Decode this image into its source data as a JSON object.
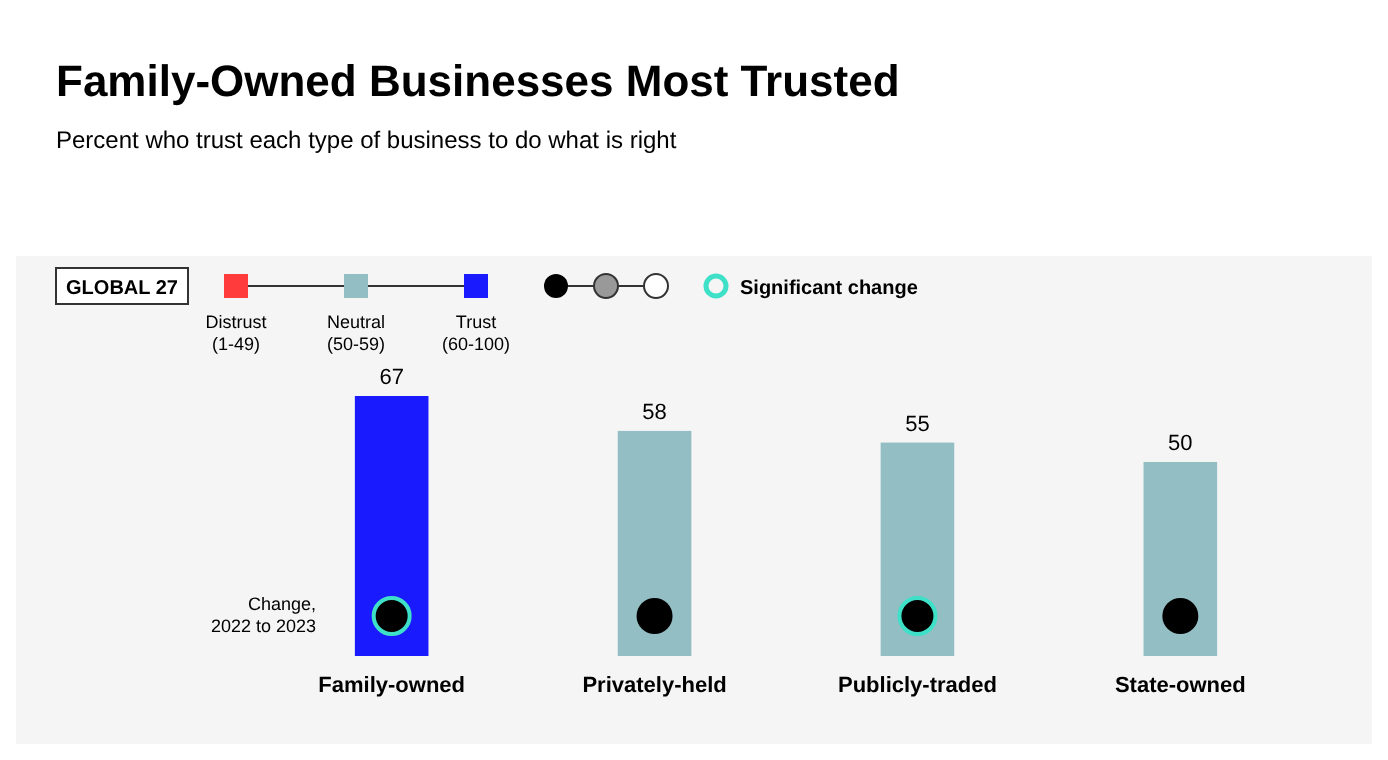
{
  "chart_data": {
    "type": "bar",
    "title": "Family-Owned Businesses Most Trusted",
    "subtitle": "Percent who trust each type of business to do what is right",
    "categories": [
      "Family-owned",
      "Privately-held",
      "Publicly-traded",
      "State-owned"
    ],
    "values": [
      67,
      58,
      55,
      50
    ],
    "colors": [
      "#1a1aff",
      "#93bfc4",
      "#93bfc4",
      "#93bfc4"
    ],
    "data_labels": true,
    "annotations": [
      "GLOBAL 27",
      "Distrust (1-49)",
      "Neutral (50-59)",
      "Trust (60-100)",
      "Significant change",
      "Change, 2022 to 2023"
    ]
  }
}
